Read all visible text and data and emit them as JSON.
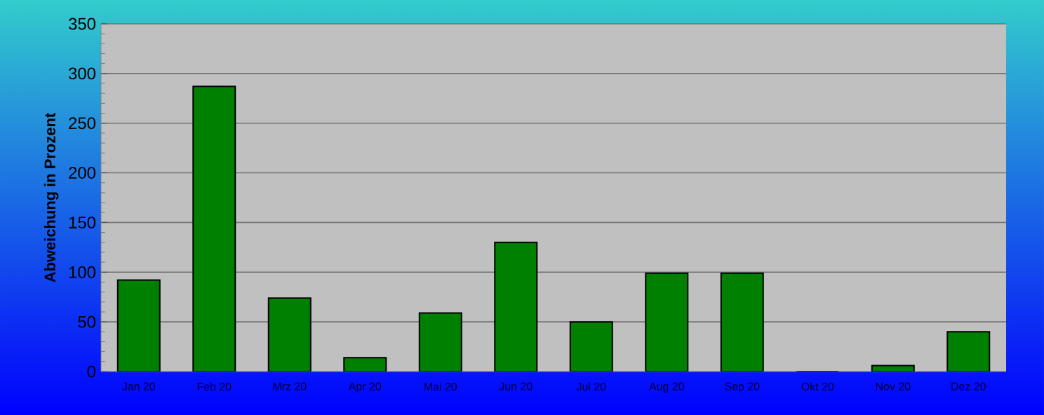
{
  "chart_data": {
    "type": "bar",
    "ylabel": "Abweichung in Prozent",
    "categories": [
      "Jan 20",
      "Feb 20",
      "Mrz 20",
      "Apr 20",
      "Mai 20",
      "Jun 20",
      "Jul 20",
      "Aug 20",
      "Sep 20",
      "Okt 20",
      "Nov 20",
      "Dez 20"
    ],
    "values": [
      92,
      287,
      74,
      14,
      59,
      130,
      50,
      99,
      99,
      0,
      6,
      40
    ],
    "color": "#008000",
    "ylim": [
      0,
      350
    ],
    "yticks": [
      0,
      50,
      100,
      150,
      200,
      250,
      300,
      350
    ],
    "grid": "y"
  }
}
